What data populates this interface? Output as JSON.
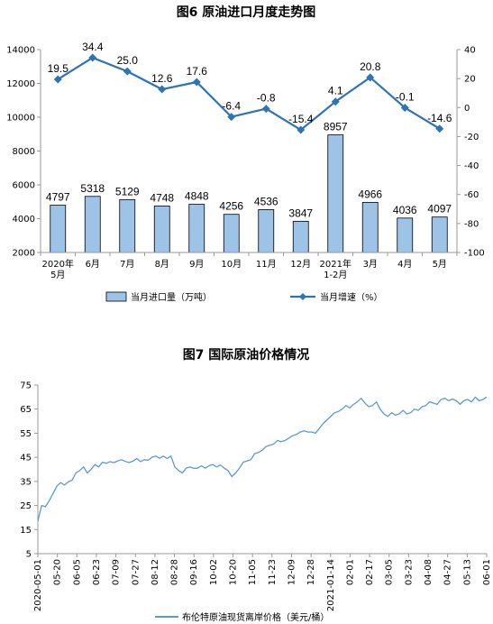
{
  "chart_data": [
    {
      "type": "bar",
      "title": "图6 原油进口月度走势图",
      "categories": [
        "2020年\n5月",
        "6月",
        "7月",
        "8月",
        "9月",
        "10月",
        "11月",
        "12月",
        "2021年\n1-2月",
        "3月",
        "4月",
        "5月"
      ],
      "series": [
        {
          "name": "当月进口量（万吨）",
          "type": "bar",
          "axis": "left",
          "values": [
            4797,
            5318,
            5129,
            4748,
            4848,
            4256,
            4536,
            3847,
            8957,
            4966,
            4036,
            4097
          ],
          "color": "#9DC3E6"
        },
        {
          "name": "当月增速（%）",
          "type": "line",
          "axis": "right",
          "values": [
            19.5,
            34.4,
            25.0,
            12.6,
            17.6,
            -6.4,
            -0.8,
            -15.4,
            4.1,
            20.8,
            -0.1,
            -14.6
          ],
          "color": "#2E74B5"
        }
      ],
      "bar_labels": [
        "4797",
        "5318",
        "5129",
        "4748",
        "4848",
        "4256",
        "4536",
        "3847",
        "8957",
        "4966",
        "4036",
        "4097"
      ],
      "line_labels": [
        "19.5",
        "34.4",
        "25.0",
        "12.6",
        "17.6",
        "-6.4",
        "-0.8",
        "-15.4",
        "4.1",
        "20.8",
        "-0.1",
        "-14.6"
      ],
      "ylim_left": [
        2000,
        14000
      ],
      "yticks_left": [
        "2000",
        "4000",
        "6000",
        "8000",
        "10000",
        "12000",
        "14000"
      ],
      "ylim_right": [
        -100,
        40
      ],
      "yticks_right": [
        "-100",
        "-80",
        "-60",
        "-40",
        "-20",
        "0",
        "20",
        "40"
      ],
      "legend_position": "bottom",
      "grid": false
    },
    {
      "type": "line",
      "title": "图7 国际原油价格情况",
      "x_labels": [
        "2020-05-01",
        "05-20",
        "06-05",
        "06-23",
        "07-09",
        "07-27",
        "08-12",
        "08-28",
        "09-16",
        "10-02",
        "10-20",
        "11-05",
        "11-23",
        "12-09",
        "12-28",
        "2021-01-14",
        "02-01",
        "02-17",
        "03-05",
        "03-23",
        "04-08",
        "04-27",
        "05-13",
        "06-01"
      ],
      "yticks": [
        "5",
        "15",
        "25",
        "35",
        "45",
        "55",
        "65",
        "75"
      ],
      "ylim": [
        5,
        75
      ],
      "series": [
        {
          "name": "布伦特原油现货离岸价格（美元/桶）",
          "color": "#5B9BD5",
          "values": [
            18.5,
            25,
            24.5,
            27,
            30,
            33,
            34.5,
            33.5,
            34.8,
            35.5,
            38.5,
            39.5,
            41,
            38.5,
            40,
            42,
            41,
            43,
            42.5,
            43.2,
            42.8,
            43.5,
            44,
            43.3,
            42.8,
            43.4,
            44.5,
            43.2,
            44,
            43.8,
            45,
            45.5,
            44.6,
            45.5,
            44.5,
            45.5,
            41,
            39.5,
            38.5,
            40.5,
            41,
            40.4,
            40.5,
            41.5,
            40.5,
            41.5,
            42,
            41,
            41.8,
            40.5,
            39.5,
            37,
            38.5,
            40.5,
            43,
            43.5,
            44,
            46.5,
            47,
            48,
            49.5,
            50,
            50.5,
            52,
            51.5,
            52,
            53,
            54,
            54.5,
            55.5,
            56,
            55.5,
            55.5,
            55,
            57,
            59,
            60.5,
            62,
            63.5,
            64,
            65,
            66.5,
            65.5,
            67,
            68,
            69.5,
            67.5,
            66,
            66.5,
            68,
            65,
            63,
            62,
            63.5,
            62.5,
            63,
            64.5,
            63,
            63.5,
            65,
            64.5,
            66,
            66.5,
            68,
            67.5,
            67,
            69,
            69.5,
            68.5,
            69.2,
            68.5,
            67,
            68.5,
            69,
            68,
            70,
            68.5,
            69,
            70
          ]
        }
      ]
    }
  ]
}
